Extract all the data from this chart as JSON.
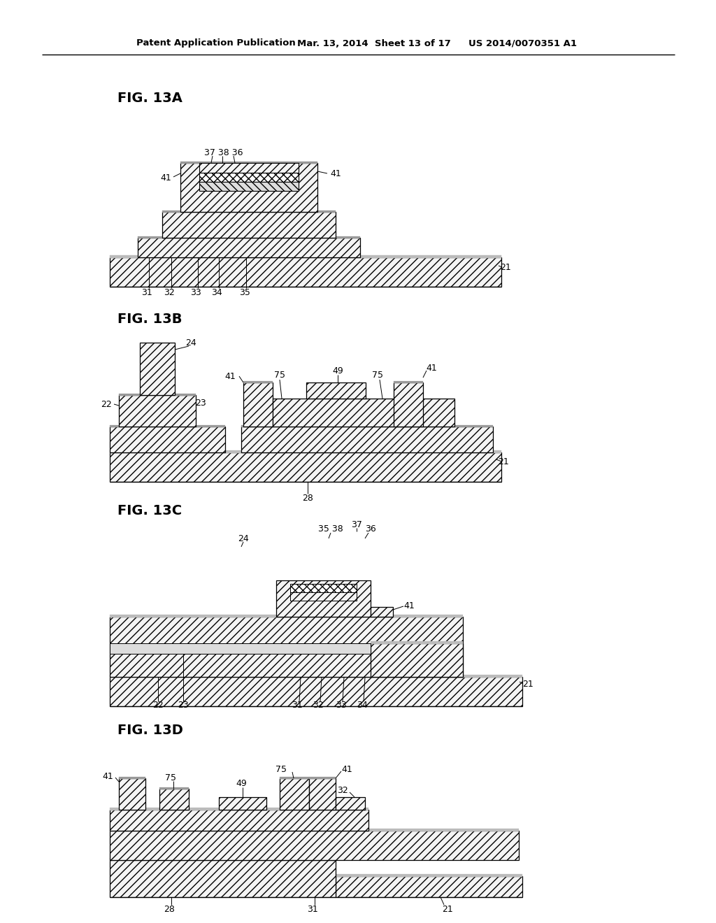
{
  "bg_color": "#ffffff",
  "header_left": "Patent Application Publication",
  "header_mid": "Mar. 13, 2014  Sheet 13 of 17",
  "header_right": "US 2014/0070351 A1"
}
